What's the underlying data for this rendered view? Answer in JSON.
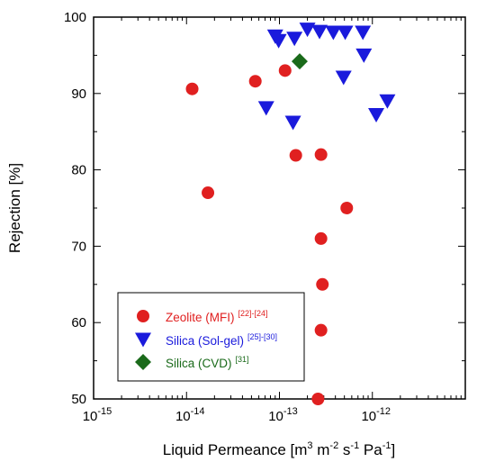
{
  "chart_data": {
    "type": "scatter",
    "title": "",
    "xlabel": {
      "base": "Liquid Permeance [m",
      "sup1": "3",
      "mid1": " m",
      "sup2": "-2",
      "mid2": " s",
      "sup3": "-1",
      "mid3": " Pa",
      "sup4": "-1",
      "end": "]"
    },
    "ylabel": "Rejection [%]",
    "x_scale": "log",
    "xlim": [
      1e-15,
      1e-11
    ],
    "ylim": [
      50,
      100
    ],
    "x_ticks": [
      {
        "exp": -15,
        "base": "10",
        "sup": "-15"
      },
      {
        "exp": -14,
        "base": "10",
        "sup": "-14"
      },
      {
        "exp": -13,
        "base": "10",
        "sup": "-13"
      },
      {
        "exp": -12,
        "base": "10",
        "sup": "-12"
      }
    ],
    "y_ticks": [
      50,
      60,
      70,
      80,
      90,
      100
    ],
    "legend_position": "bottom-left",
    "grid": false,
    "series": [
      {
        "name": "Zeolite (MFI)",
        "ref": "[22]-[24]",
        "marker": "circle",
        "color": "#e02020",
        "points": [
          {
            "x": 1.15e-14,
            "y": 90.6
          },
          {
            "x": 1.7e-14,
            "y": 77.0
          },
          {
            "x": 5.5e-14,
            "y": 91.6
          },
          {
            "x": 1.15e-13,
            "y": 93.0
          },
          {
            "x": 1.5e-13,
            "y": 81.9
          },
          {
            "x": 2.8e-13,
            "y": 82.0
          },
          {
            "x": 2.8e-13,
            "y": 71.0
          },
          {
            "x": 2.9e-13,
            "y": 65.0
          },
          {
            "x": 2.8e-13,
            "y": 59.0
          },
          {
            "x": 5.3e-13,
            "y": 75.0
          },
          {
            "x": 2.6e-13,
            "y": 50.0
          }
        ]
      },
      {
        "name": "Silica (Sol-gel)",
        "ref": "[25]-[30]",
        "marker": "triangle-down",
        "color": "#1a1adc",
        "points": [
          {
            "x": 7.2e-14,
            "y": 88.1
          },
          {
            "x": 9e-14,
            "y": 97.5
          },
          {
            "x": 9.8e-14,
            "y": 96.9
          },
          {
            "x": 1.4e-13,
            "y": 86.2
          },
          {
            "x": 1.45e-13,
            "y": 97.2
          },
          {
            "x": 2e-13,
            "y": 98.4
          },
          {
            "x": 2.7e-13,
            "y": 98.1
          },
          {
            "x": 3.8e-13,
            "y": 98.0
          },
          {
            "x": 4.9e-13,
            "y": 92.1
          },
          {
            "x": 5.1e-13,
            "y": 98.0
          },
          {
            "x": 7.9e-13,
            "y": 98.0
          },
          {
            "x": 8.1e-13,
            "y": 95.0
          },
          {
            "x": 1.1e-12,
            "y": 87.2
          },
          {
            "x": 1.45e-12,
            "y": 89.0
          }
        ]
      },
      {
        "name": "Silica (CVD)",
        "ref": "[31]",
        "marker": "diamond",
        "color": "#1a6a1a",
        "points": [
          {
            "x": 1.65e-13,
            "y": 94.2
          }
        ]
      }
    ]
  }
}
